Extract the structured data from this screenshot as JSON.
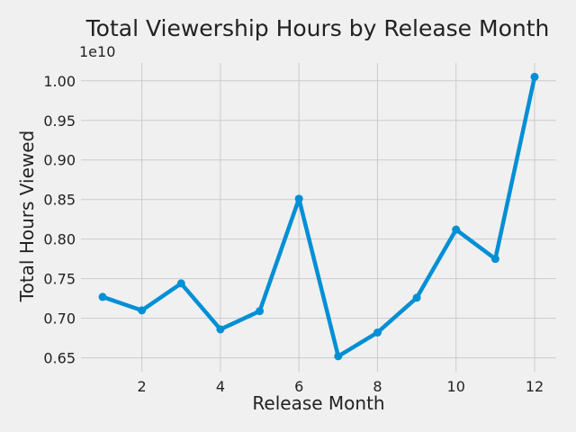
{
  "chart_data": {
    "type": "line",
    "title": "Total Viewership Hours by Release Month",
    "xlabel": "Release Month",
    "ylabel": "Total Hours Viewed",
    "y_offset_label": "1e10",
    "x": [
      1,
      2,
      3,
      4,
      5,
      6,
      7,
      8,
      9,
      10,
      11,
      12
    ],
    "series": [
      {
        "values": [
          0.727,
          0.71,
          0.744,
          0.686,
          0.709,
          0.851,
          0.652,
          0.682,
          0.726,
          0.812,
          0.775,
          1.005
        ],
        "color": "#008fd5"
      }
    ],
    "xlim": [
      0.45,
      12.55
    ],
    "ylim": [
      0.6325,
      1.0225
    ],
    "x_ticks": [
      2,
      4,
      6,
      8,
      10,
      12
    ],
    "x_tick_labels": [
      "2",
      "4",
      "6",
      "8",
      "10",
      "12"
    ],
    "y_ticks": [
      0.65,
      0.7,
      0.75,
      0.8,
      0.85,
      0.9,
      0.95,
      1.0
    ],
    "y_tick_labels": [
      "0.65",
      "0.70",
      "0.75",
      "0.80",
      "0.85",
      "0.90",
      "0.95",
      "1.00"
    ],
    "grid": true,
    "background_color": "#f0f0f0",
    "grid_color": "#cbcbcb"
  }
}
